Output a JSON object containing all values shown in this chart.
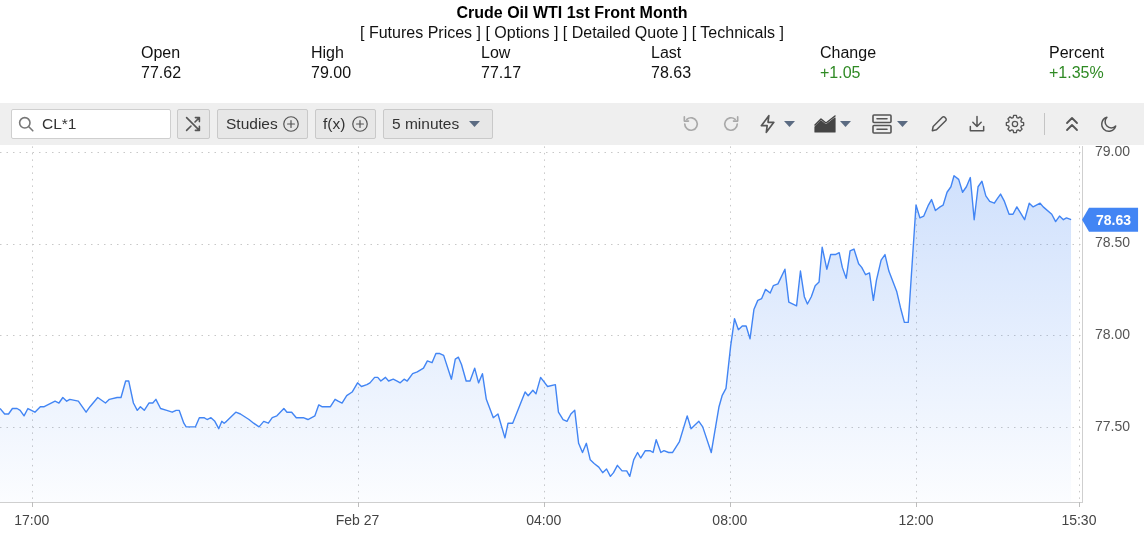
{
  "chart_data": {
    "type": "area",
    "title": "Crude Oil WTI 1st Front Month",
    "subtitle": "[ Futures Prices ] [ Options ] [ Detailed Quote ] [ Technicals ]",
    "annotations": [
      "Open",
      "77.62",
      "High",
      "79.00",
      "Low",
      "77.17",
      "Last",
      "78.63",
      "Change",
      "+1.05",
      "Percent",
      "+1.35%",
      "CL*1",
      "Studies",
      "f(x)",
      "5 minutes",
      {
        "text": "78.63",
        "x": "--02-27T15:20",
        "y": 78.63
      }
    ],
    "x": [
      "--02-26T16:19",
      "--02-26T16:25",
      "--02-26T16:30",
      "--02-26T16:35",
      "--02-26T16:41",
      "--02-26T16:45",
      "--02-26T16:50",
      "--02-26T16:55",
      "--02-26T17:04",
      "--02-26T17:11",
      "--02-26T17:16",
      "--02-26T17:30",
      "--02-26T17:35",
      "--02-26T17:40",
      "--02-26T17:45",
      "--02-26T17:49",
      "--02-26T18:00",
      "--02-26T18:10",
      "--02-26T18:15",
      "--02-26T18:25",
      "--02-26T18:35",
      "--02-26T18:40",
      "--02-26T18:50",
      "--02-26T18:55",
      "--02-26T19:01",
      "--02-26T19:05",
      "--02-26T19:11",
      "--02-26T19:16",
      "--02-26T19:20",
      "--02-26T19:25",
      "--02-26T19:31",
      "--02-26T19:36",
      "--02-26T19:40",
      "--02-26T19:46",
      "--02-26T19:54",
      "--02-26T20:01",
      "--02-26T20:06",
      "--02-26T20:10",
      "--02-26T20:16",
      "--02-26T20:19",
      "--02-26T20:31",
      "--02-26T20:36",
      "--02-26T20:42",
      "--02-26T20:46",
      "--02-26T20:51",
      "--02-26T20:56",
      "--02-26T21:01",
      "--02-26T21:05",
      "--02-26T21:08",
      "--02-26T21:11",
      "--02-26T21:23",
      "--02-26T21:29",
      "--02-26T21:40",
      "--02-26T21:46",
      "--02-26T21:53",
      "--02-26T21:59",
      "--02-26T22:05",
      "--02-26T22:10",
      "--02-26T22:16",
      "--02-26T22:25",
      "--02-26T22:29",
      "--02-26T22:35",
      "--02-26T22:41",
      "--02-26T22:50",
      "--02-26T22:56",
      "--02-26T23:05",
      "--02-26T23:10",
      "--02-26T23:14",
      "--02-26T23:25",
      "--02-26T23:31",
      "--02-26T23:35",
      "--02-26T23:40",
      "--02-26T23:46",
      "--02-26T23:53",
      "--02-27T00:00",
      "--02-27T00:05",
      "--02-27T00:12",
      "--02-27T00:16",
      "--02-27T00:22",
      "--02-27T00:26",
      "--02-27T00:30",
      "--02-27T00:36",
      "--02-27T00:40",
      "--02-27T00:46",
      "--02-27T00:51",
      "--02-27T00:55",
      "--02-27T01:00",
      "--02-27T01:04",
      "--02-27T01:11",
      "--02-27T01:17",
      "--02-27T01:25",
      "--02-27T01:30",
      "--02-27T01:36",
      "--02-27T01:41",
      "--02-27T01:46",
      "--02-27T01:51",
      "--02-27T02:01",
      "--02-27T02:06",
      "--02-27T02:10",
      "--02-27T02:14",
      "--02-27T02:20",
      "--02-27T02:25",
      "--02-27T02:31",
      "--02-27T02:36",
      "--02-27T02:41",
      "--02-27T02:46",
      "--02-27T02:55",
      "--02-27T03:01",
      "--02-27T03:10",
      "--02-27T03:14",
      "--02-27T03:20",
      "--02-27T03:36",
      "--02-27T03:40",
      "--02-27T03:46",
      "--02-27T03:50",
      "--02-27T03:56",
      "--02-27T04:05",
      "--02-27T04:15",
      "--02-27T04:19",
      "--02-27T04:25",
      "--02-27T04:30",
      "--02-27T04:35",
      "--02-27T04:40",
      "--02-27T04:45",
      "--02-27T04:50",
      "--02-27T04:55",
      "--02-27T05:00",
      "--02-27T05:05",
      "--02-27T05:11",
      "--02-27T05:16",
      "--02-27T05:21",
      "--02-27T05:26",
      "--02-27T05:30",
      "--02-27T05:35",
      "--02-27T05:41",
      "--02-27T05:47",
      "--02-27T05:51",
      "--02-27T05:56",
      "--02-27T06:01",
      "--02-27T06:05",
      "--02-27T06:11",
      "--02-27T06:17",
      "--02-27T06:21",
      "--02-27T06:25",
      "--02-27T06:31",
      "--02-27T06:35",
      "--02-27T06:41",
      "--02-27T06:46",
      "--02-27T06:55",
      "--02-27T07:05",
      "--02-27T07:10",
      "--02-27T07:20",
      "--02-27T07:25",
      "--02-27T07:36",
      "--02-27T07:40",
      "--02-27T07:46",
      "--02-27T07:50",
      "--02-27T07:55",
      "--02-27T08:01",
      "--02-27T08:06",
      "--02-27T08:11",
      "--02-27T08:16",
      "--02-27T08:21",
      "--02-27T08:26",
      "--02-27T08:31",
      "--02-27T08:36",
      "--02-27T08:41",
      "--02-27T08:46",
      "--02-27T08:52",
      "--02-27T08:56",
      "--02-27T09:02",
      "--02-27T09:11",
      "--02-27T09:16",
      "--02-27T09:26",
      "--02-27T09:31",
      "--02-27T09:36",
      "--02-27T09:40",
      "--02-27T09:45",
      "--02-27T09:50",
      "--02-27T09:55",
      "--02-27T09:59",
      "--02-27T10:05",
      "--02-27T10:10",
      "--02-27T10:16",
      "--02-27T10:21",
      "--02-27T10:25",
      "--02-27T10:30",
      "--02-27T10:35",
      "--02-27T10:40",
      "--02-27T10:46",
      "--02-27T10:50",
      "--02-27T10:55",
      "--02-27T11:00",
      "--02-27T11:05",
      "--02-27T11:09",
      "--02-27T11:15",
      "--02-27T11:20",
      "--02-27T11:25",
      "--02-27T11:35",
      "--02-27T11:40",
      "--02-27T11:45",
      "--02-27T11:50",
      "--02-27T12:00",
      "--02-27T12:05",
      "--02-27T12:10",
      "--02-27T12:16",
      "--02-27T12:20",
      "--02-27T12:25",
      "--02-27T12:31",
      "--02-27T12:35",
      "--02-27T12:40",
      "--02-27T12:45",
      "--02-27T12:49",
      "--02-27T12:55",
      "--02-27T13:00",
      "--02-27T13:05",
      "--02-27T13:10",
      "--02-27T13:15",
      "--02-27T13:20",
      "--02-27T13:25",
      "--02-27T13:30",
      "--02-27T13:35",
      "--02-27T13:41",
      "--02-27T13:44",
      "--02-27T13:49",
      "--02-27T13:54",
      "--02-27T14:00",
      "--02-27T14:05",
      "--02-27T14:10",
      "--02-27T14:20",
      "--02-27T14:26",
      "--02-27T14:31",
      "--02-27T14:40",
      "--02-27T14:44",
      "--02-27T14:55",
      "--02-27T15:00",
      "--02-27T15:05",
      "--02-27T15:10",
      "--02-27T15:14",
      "--02-27T15:20"
    ],
    "values": [
      77.6,
      77.57,
      77.57,
      77.6,
      77.6,
      77.59,
      77.56,
      77.6,
      77.58,
      77.61,
      77.61,
      77.64,
      77.63,
      77.66,
      77.64,
      77.65,
      77.64,
      77.58,
      77.61,
      77.66,
      77.63,
      77.65,
      77.66,
      77.66,
      77.75,
      77.75,
      77.63,
      77.59,
      77.61,
      77.59,
      77.63,
      77.63,
      77.65,
      77.6,
      77.59,
      77.58,
      77.59,
      77.59,
      77.52,
      77.5,
      77.5,
      77.55,
      77.55,
      77.54,
      77.55,
      77.53,
      77.49,
      77.53,
      77.52,
      77.53,
      77.58,
      77.57,
      77.54,
      77.52,
      77.5,
      77.53,
      77.52,
      77.55,
      77.56,
      77.6,
      77.58,
      77.58,
      77.55,
      77.55,
      77.54,
      77.56,
      77.62,
      77.61,
      77.61,
      77.65,
      77.64,
      77.63,
      77.67,
      77.69,
      77.74,
      77.72,
      77.73,
      77.74,
      77.77,
      77.77,
      77.75,
      77.77,
      77.75,
      77.76,
      77.75,
      77.74,
      77.76,
      77.75,
      77.79,
      77.8,
      77.82,
      77.86,
      77.85,
      77.9,
      77.9,
      77.89,
      77.76,
      77.87,
      77.88,
      77.84,
      77.75,
      77.75,
      77.82,
      77.74,
      77.79,
      77.65,
      77.55,
      77.57,
      77.44,
      77.52,
      77.52,
      77.69,
      77.67,
      77.7,
      77.68,
      77.77,
      77.72,
      77.73,
      77.58,
      77.54,
      77.53,
      77.57,
      77.59,
      77.41,
      77.36,
      77.41,
      77.32,
      77.3,
      77.28,
      77.25,
      77.27,
      77.23,
      77.25,
      77.29,
      77.26,
      77.26,
      77.23,
      77.32,
      77.36,
      77.33,
      77.37,
      77.37,
      77.36,
      77.43,
      77.36,
      77.37,
      77.36,
      77.36,
      77.42,
      77.56,
      77.49,
      77.53,
      77.5,
      77.36,
      77.46,
      77.61,
      77.67,
      77.71,
      77.94,
      78.09,
      78.03,
      78.05,
      78.05,
      77.98,
      78.14,
      78.19,
      78.2,
      78.25,
      78.23,
      78.27,
      78.28,
      78.36,
      78.18,
      78.16,
      78.35,
      78.21,
      78.17,
      78.21,
      78.27,
      78.29,
      78.48,
      78.36,
      78.44,
      78.44,
      78.45,
      78.37,
      78.31,
      78.46,
      78.47,
      78.39,
      78.37,
      78.33,
      78.34,
      78.19,
      78.3,
      78.41,
      78.44,
      78.35,
      78.24,
      78.15,
      78.07,
      78.07,
      78.71,
      78.64,
      78.65,
      78.71,
      78.74,
      78.68,
      78.7,
      78.71,
      78.78,
      78.81,
      78.87,
      78.85,
      78.78,
      78.81,
      78.86,
      78.63,
      78.81,
      78.84,
      78.76,
      78.73,
      78.72,
      78.74,
      78.77,
      78.73,
      78.66,
      78.66,
      78.7,
      78.63,
      78.72,
      78.7,
      78.72,
      78.7,
      78.66,
      78.62,
      78.65,
      78.63,
      78.64,
      78.63
    ],
    "color": "#4285f4",
    "xlim": [
      "--02-26T16:19",
      "--02-27T15:34"
    ],
    "ylim": [
      77.09,
      79.03
    ],
    "xticks": [
      {
        "value": "--02-26T17:00",
        "label": "17:00"
      },
      {
        "value": "--02-27T00:00",
        "label": "Feb 27"
      },
      {
        "value": "--02-27T04:00",
        "label": "04:00"
      },
      {
        "value": "--02-27T08:00",
        "label": "08:00"
      },
      {
        "value": "--02-27T12:00",
        "label": "12:00"
      },
      {
        "value": "--02-27T15:30",
        "label": "15:30"
      }
    ],
    "yticks": [
      {
        "value": 77.5,
        "label": "77.50"
      },
      {
        "value": 78,
        "label": "78.00"
      },
      {
        "value": 78.5,
        "label": "78.50"
      },
      {
        "value": 79,
        "label": "79.00"
      }
    ],
    "grid": true
  }
}
